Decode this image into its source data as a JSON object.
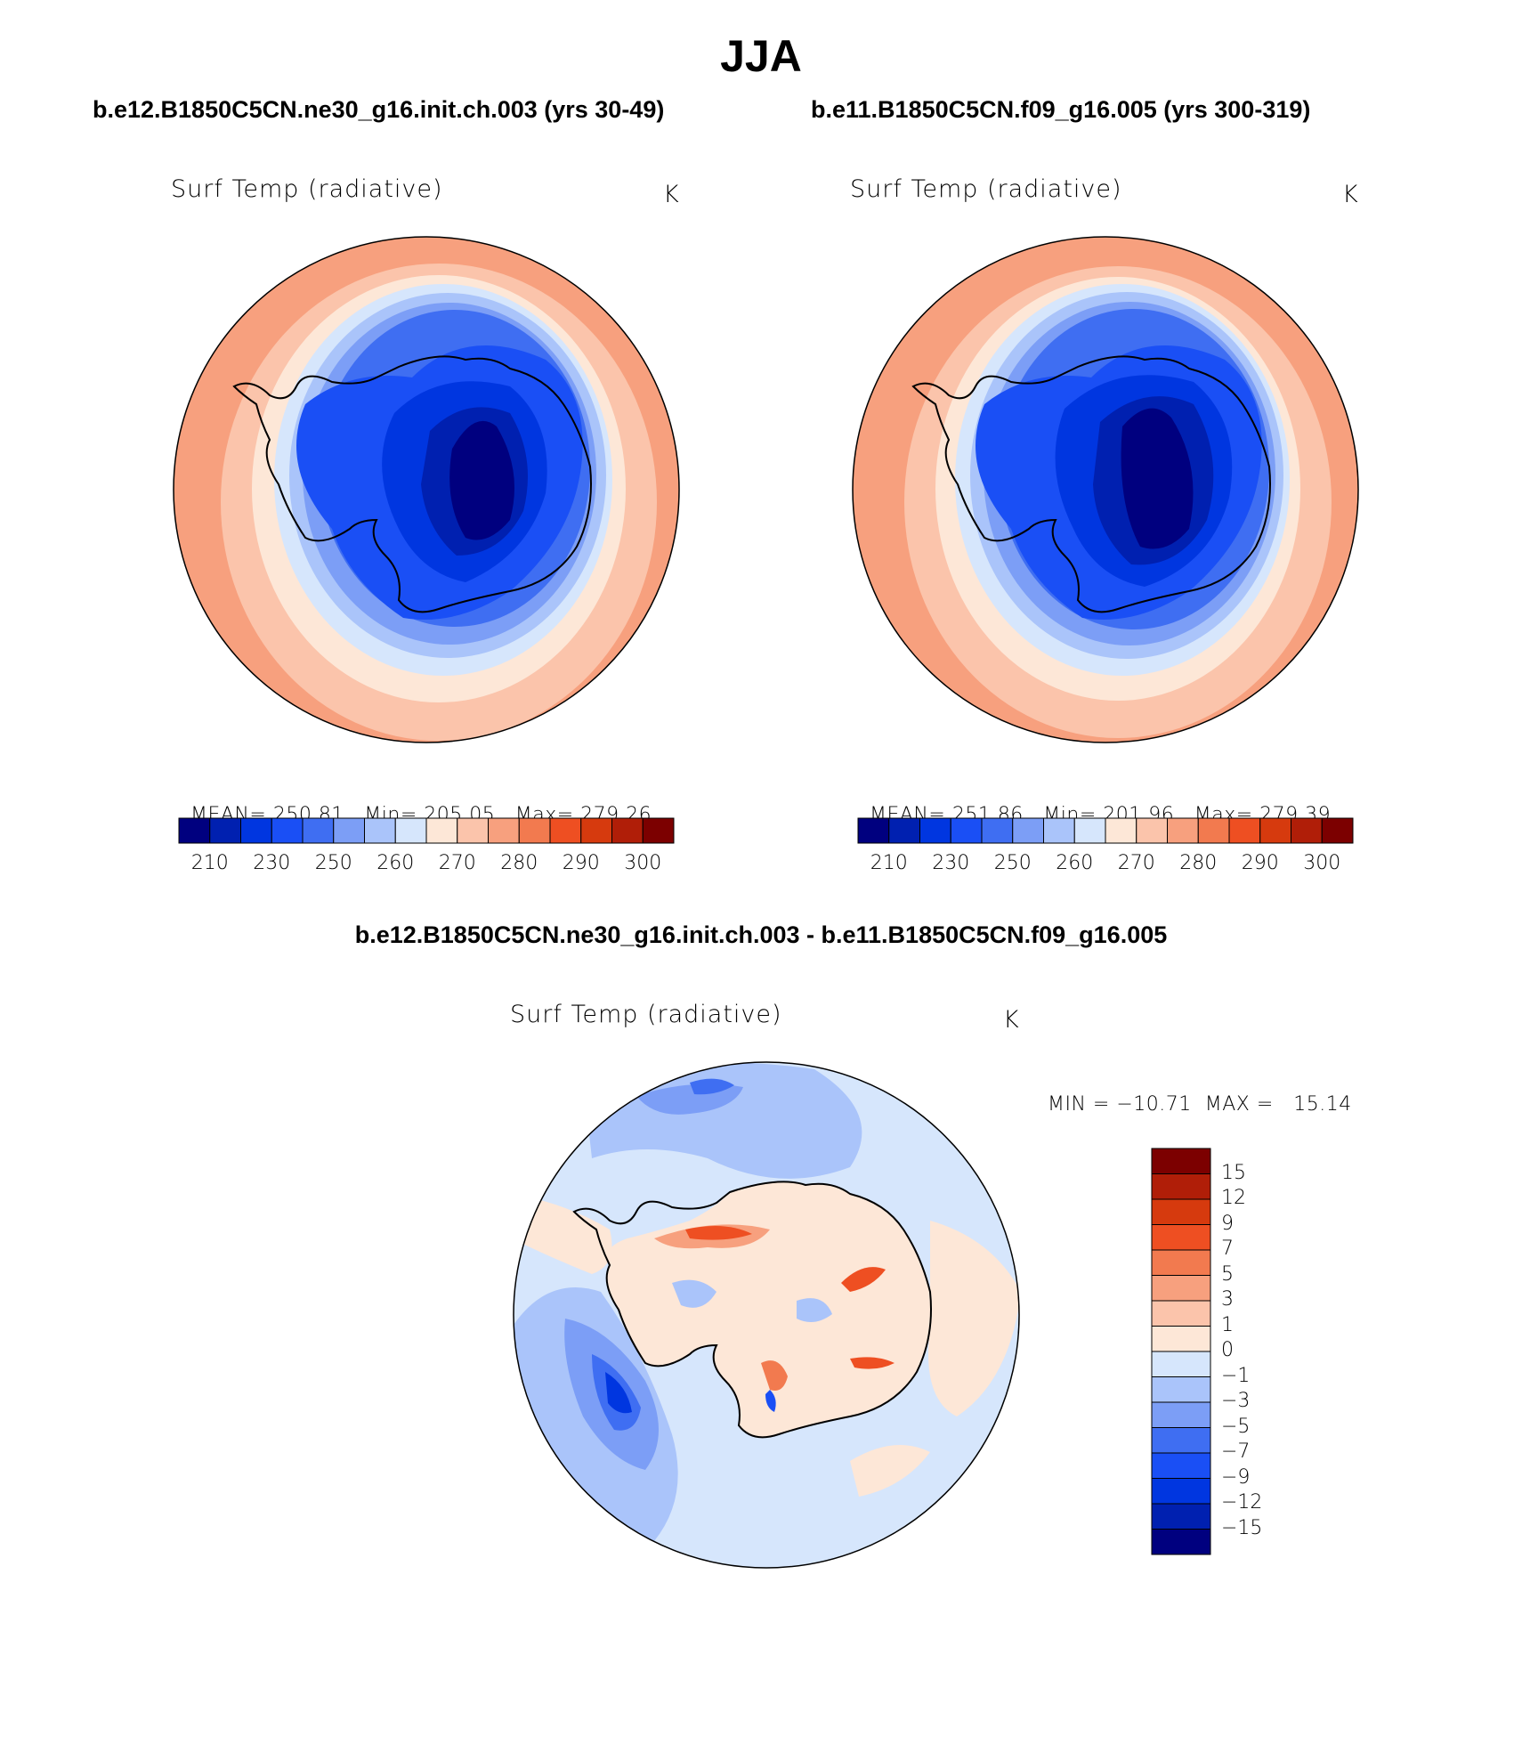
{
  "figure": {
    "title": "JJA"
  },
  "panels": [
    {
      "case_title": "b.e12.B1850C5CN.ne30_g16.init.ch.003 (yrs 30-49)",
      "field": "Surf Temp (radiative)",
      "units": "K",
      "stats": {
        "mean_label": "MEAN=",
        "mean": "250.81",
        "min_label": "Min=",
        "min": "205.05",
        "max_label": "Max=",
        "max": "279.26"
      },
      "colorbar_ticks": [
        "210",
        "230",
        "250",
        "260",
        "270",
        "280",
        "290",
        "300"
      ]
    },
    {
      "case_title": "b.e11.B1850C5CN.f09_g16.005 (yrs 300-319)",
      "field": "Surf Temp (radiative)",
      "units": "K",
      "stats": {
        "mean_label": "MEAN=",
        "mean": "251.86",
        "min_label": "Min=",
        "min": "201.96",
        "max_label": "Max=",
        "max": "279.39"
      },
      "colorbar_ticks": [
        "210",
        "230",
        "250",
        "260",
        "270",
        "280",
        "290",
        "300"
      ]
    }
  ],
  "diff_panel": {
    "case_title": "b.e12.B1850C5CN.ne30_g16.init.ch.003 - b.e11.B1850C5CN.f09_g16.005",
    "field": "Surf Temp (radiative)",
    "units": "K",
    "minmax": "MIN = −10.71  MAX =   15.14",
    "colorbar_ticks": [
      "15",
      "12",
      "9",
      "7",
      "5",
      "3",
      "1",
      "0",
      "−1",
      "−3",
      "−5",
      "−7",
      "−9",
      "−12",
      "−15"
    ]
  },
  "colors": {
    "abs_scale": [
      "#00007f",
      "#0020b0",
      "#0036e0",
      "#1a4ff5",
      "#3f6ef2",
      "#7c9ef6",
      "#aac4fa",
      "#d6e6fc",
      "#fde7d7",
      "#fbc4ab",
      "#f7a07e",
      "#f27a4f",
      "#ee4f22",
      "#d63a0e",
      "#b01e08",
      "#7c0000"
    ],
    "diff_scale": [
      "#7c0000",
      "#b01e08",
      "#d63a0e",
      "#ee4f22",
      "#f27a4f",
      "#f7a07e",
      "#fbc4ab",
      "#fde7d7",
      "#d6e6fc",
      "#aac4fa",
      "#7c9ef6",
      "#3f6ef2",
      "#1a4ff5",
      "#0036e0",
      "#0020b0",
      "#00007f"
    ]
  }
}
